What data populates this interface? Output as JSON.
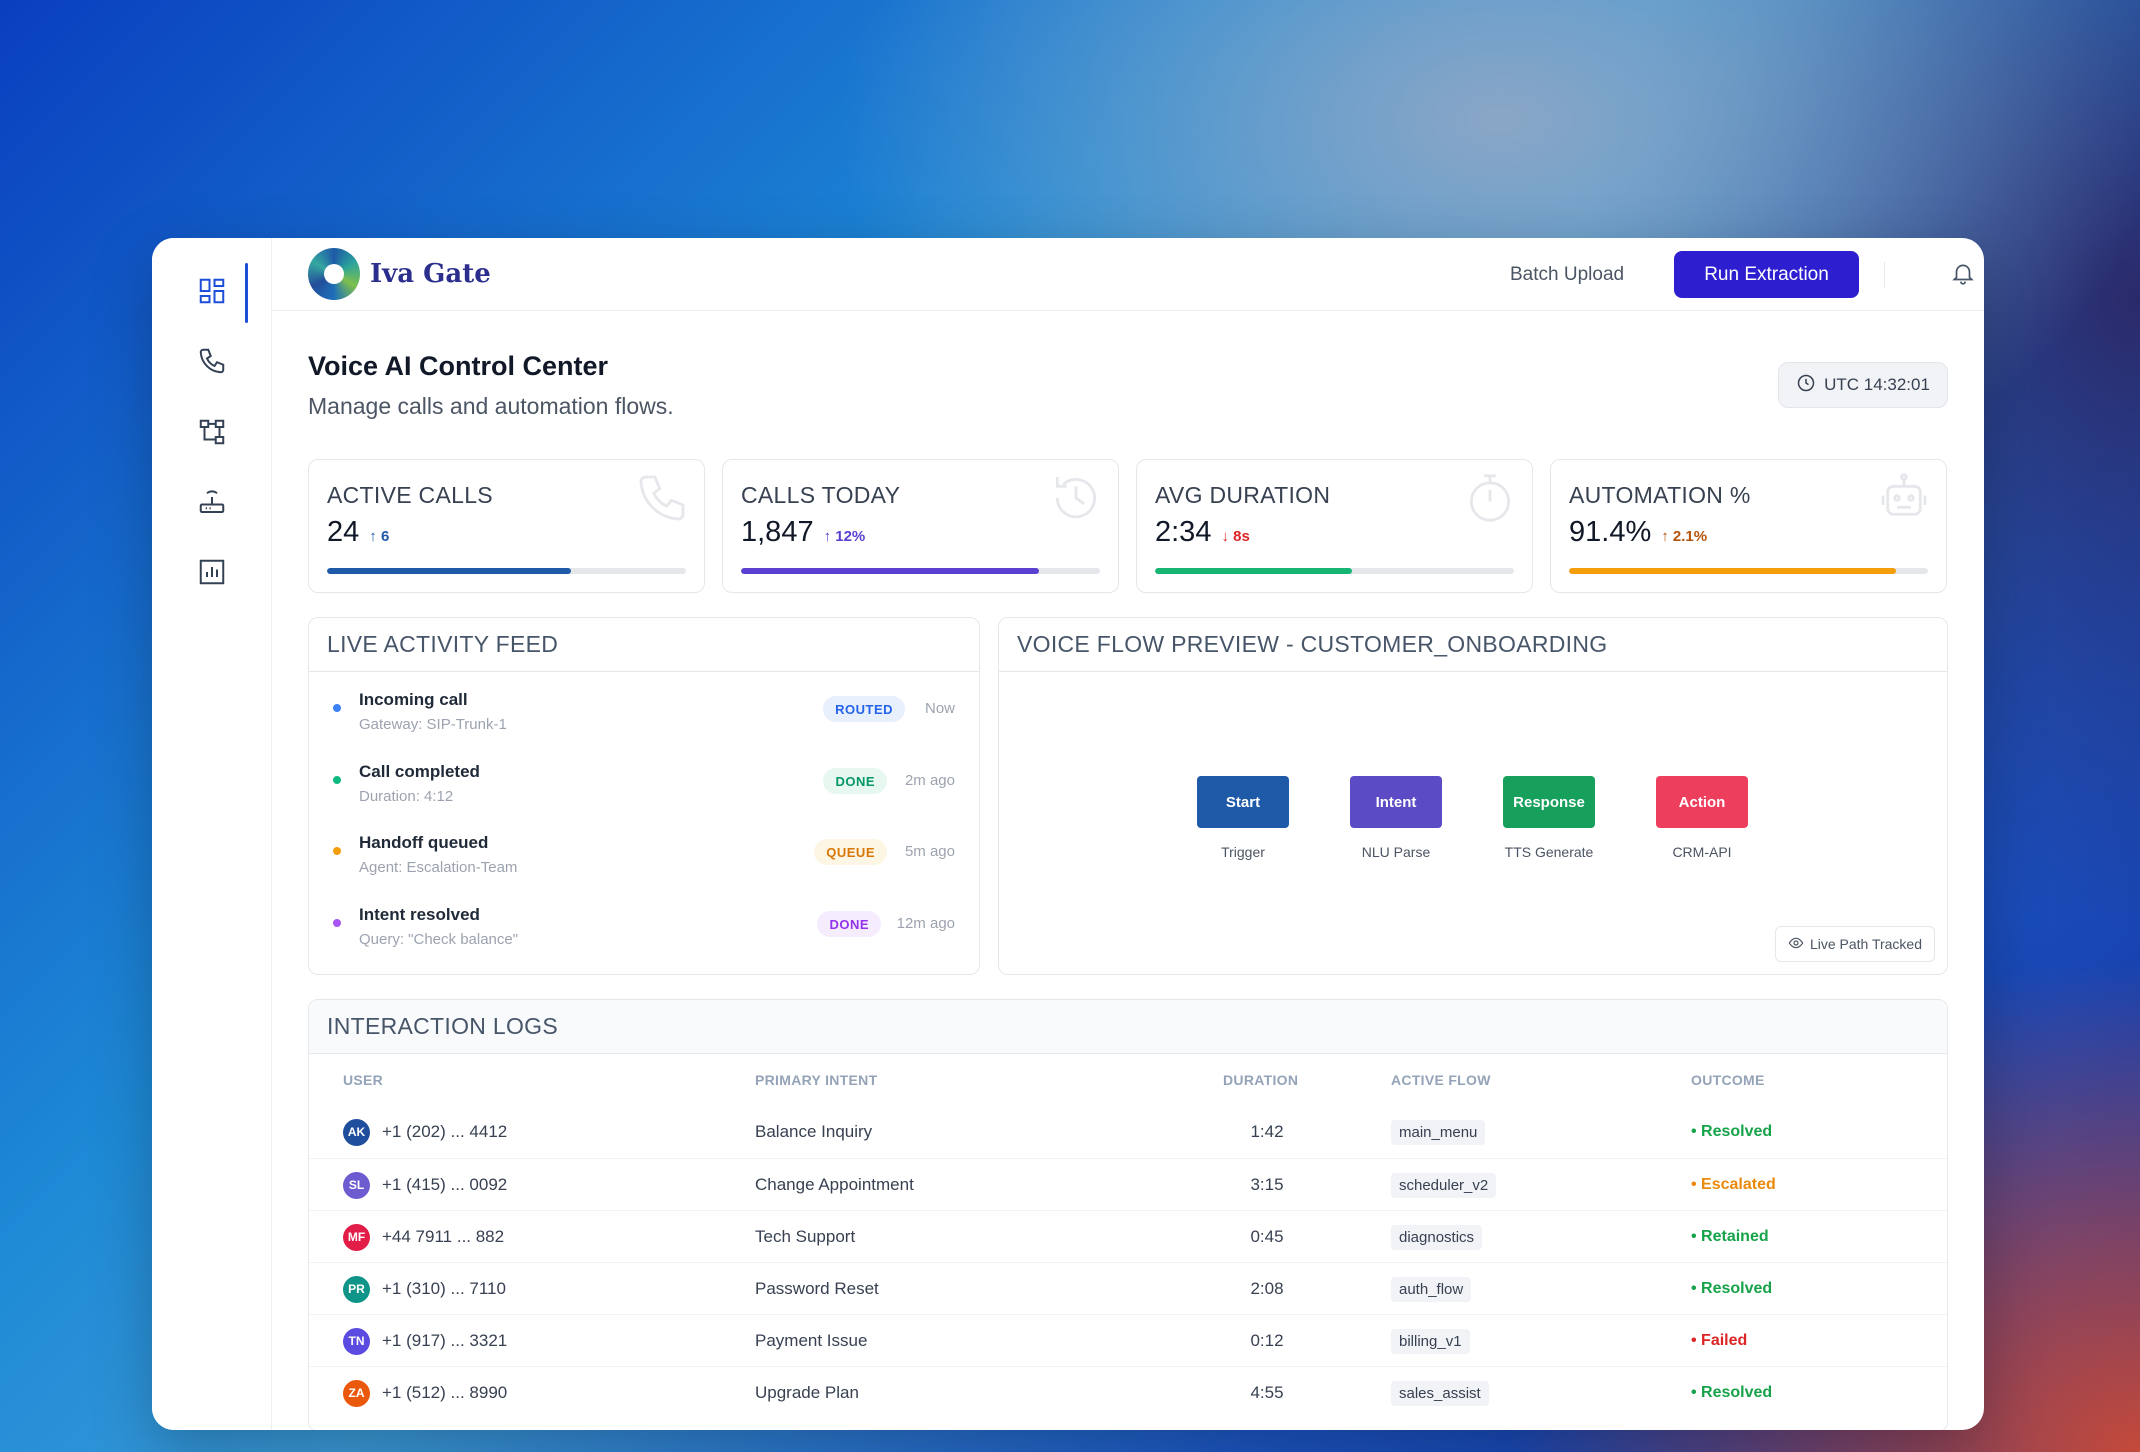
{
  "app": {
    "name": "Iva Gate"
  },
  "topbar": {
    "batch_label": "Batch Upload",
    "run_label": "Run Extraction"
  },
  "sidebar": {
    "items": [
      {
        "name": "dashboard",
        "icon": "dashboard-icon",
        "active": true
      },
      {
        "name": "calls",
        "icon": "phone-icon"
      },
      {
        "name": "flows",
        "icon": "flow-icon"
      },
      {
        "name": "gateways",
        "icon": "router-icon"
      },
      {
        "name": "analytics",
        "icon": "chart-icon"
      }
    ]
  },
  "header": {
    "title": "Voice AI Control Center",
    "subtitle": "Manage calls and automation flows.",
    "clock": "UTC 14:32:01"
  },
  "stats": [
    {
      "label": "ACTIVE CALLS",
      "value": "24",
      "delta": "6",
      "direction": "up",
      "progress": 0.68,
      "color": "#1e5aa8",
      "delta_color": "#1e5aa8",
      "icon": "phone-icon"
    },
    {
      "label": "CALLS TODAY",
      "value": "1,847",
      "delta": "12%",
      "direction": "up",
      "progress": 0.83,
      "color": "#5b3fd0",
      "delta_color": "#5b3fd0",
      "icon": "history-icon"
    },
    {
      "label": "AVG DURATION",
      "value": "2:34",
      "delta": "8s",
      "direction": "down",
      "progress": 0.55,
      "color": "#16b574",
      "delta_color": "#dc2626",
      "icon": "stopwatch-icon"
    },
    {
      "label": "AUTOMATION %",
      "value": "91.4%",
      "delta": "2.1%",
      "direction": "up",
      "progress": 0.91,
      "color": "#f59e0b",
      "delta_color": "#b45309",
      "icon": "robot-icon"
    }
  ],
  "feed": {
    "title": "LIVE ACTIVITY FEED",
    "items": [
      {
        "title": "Incoming call",
        "sub": "Gateway: SIP-Trunk-1",
        "badge": "ROUTED",
        "time": "Now",
        "dot": "#3b82f6",
        "badge_bg": "#e8f0fe",
        "badge_fg": "#2563eb"
      },
      {
        "title": "Call completed",
        "sub": "Duration: 4:12",
        "badge": "DONE",
        "time": "2m ago",
        "dot": "#10b981",
        "badge_bg": "#e7f8f0",
        "badge_fg": "#059669"
      },
      {
        "title": "Handoff queued",
        "sub": "Agent: Escalation-Team",
        "badge": "QUEUE",
        "time": "5m ago",
        "dot": "#f59e0b",
        "badge_bg": "#fef6e4",
        "badge_fg": "#d97706"
      },
      {
        "title": "Intent resolved",
        "sub": "Query: \"Check balance\"",
        "badge": "DONE",
        "time": "12m ago",
        "dot": "#a855f7",
        "badge_bg": "#f5ecfe",
        "badge_fg": "#9333ea"
      }
    ]
  },
  "flow": {
    "title": "VOICE FLOW PREVIEW - CUSTOMER_ONBOARDING",
    "nodes": [
      {
        "label": "Start",
        "caption": "Trigger",
        "color": "#1e5aa8"
      },
      {
        "label": "Intent",
        "caption": "NLU Parse",
        "color": "#5b4bc4"
      },
      {
        "label": "Response",
        "caption": "TTS Generate",
        "color": "#16a05c"
      },
      {
        "label": "Action",
        "caption": "CRM-API",
        "color": "#ee3e5e"
      }
    ],
    "live_label": "Live Path Tracked"
  },
  "logs": {
    "title": "INTERACTION LOGS",
    "columns": [
      "USER",
      "PRIMARY INTENT",
      "DURATION",
      "ACTIVE FLOW",
      "OUTCOME"
    ],
    "rows": [
      {
        "initials": "AK",
        "avatar_color": "#1e4e9c",
        "user": "+1 (202) ... 4412",
        "intent": "Balance Inquiry",
        "duration": "1:42",
        "flow": "main_menu",
        "outcome": "Resolved",
        "outcome_color": "#16a34a"
      },
      {
        "initials": "SL",
        "avatar_color": "#6d5bd0",
        "user": "+1 (415) ... 0092",
        "intent": "Change Appointment",
        "duration": "3:15",
        "flow": "scheduler_v2",
        "outcome": "Escalated",
        "outcome_color": "#ea8a0c"
      },
      {
        "initials": "MF",
        "avatar_color": "#e11d48",
        "user": "+44 7911 ... 882",
        "intent": "Tech Support",
        "duration": "0:45",
        "flow": "diagnostics",
        "outcome": "Retained",
        "outcome_color": "#16a34a"
      },
      {
        "initials": "PR",
        "avatar_color": "#0f9488",
        "user": "+1 (310) ... 7110",
        "intent": "Password Reset",
        "duration": "2:08",
        "flow": "auth_flow",
        "outcome": "Resolved",
        "outcome_color": "#16a34a"
      },
      {
        "initials": "TN",
        "avatar_color": "#5b4be0",
        "user": "+1 (917) ... 3321",
        "intent": "Payment Issue",
        "duration": "0:12",
        "flow": "billing_v1",
        "outcome": "Failed",
        "outcome_color": "#dc2626"
      },
      {
        "initials": "ZA",
        "avatar_color": "#ea580c",
        "user": "+1 (512) ... 8990",
        "intent": "Upgrade Plan",
        "duration": "4:55",
        "flow": "sales_assist",
        "outcome": "Resolved",
        "outcome_color": "#16a34a"
      }
    ]
  }
}
